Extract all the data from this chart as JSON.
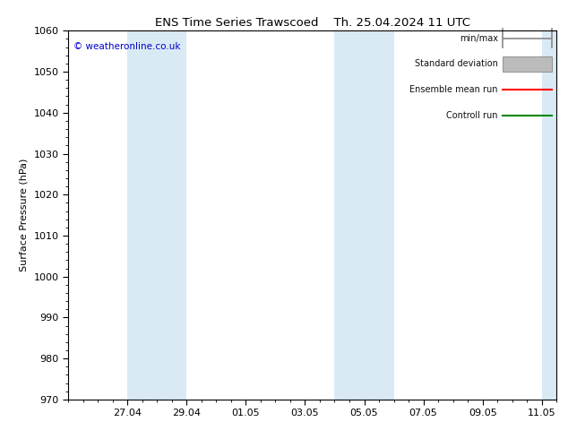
{
  "title_left": "ENS Time Series Trawscoed",
  "title_right": "Th. 25.04.2024 11 UTC",
  "ylabel": "Surface Pressure (hPa)",
  "ylim": [
    970,
    1060
  ],
  "yticks": [
    970,
    980,
    990,
    1000,
    1010,
    1020,
    1030,
    1040,
    1050,
    1060
  ],
  "xtick_labels": [
    "27.04",
    "29.04",
    "01.05",
    "03.05",
    "05.05",
    "07.05",
    "09.05",
    "11.05"
  ],
  "background_color": "#ffffff",
  "plot_bg_color": "#ffffff",
  "band_color": "#daeaf5",
  "copyright_text": "© weatheronline.co.uk",
  "copyright_color": "#0000cc",
  "title_fontsize": 9.5,
  "tick_fontsize": 8,
  "ylabel_fontsize": 8,
  "start_date": "2024-04-25",
  "band_dates": [
    [
      "2024-04-27",
      "2024-04-29"
    ],
    [
      "2024-05-04",
      "2024-05-06"
    ],
    [
      "2024-05-11",
      "2024-05-12"
    ]
  ],
  "xtick_dates": [
    "2024-04-27",
    "2024-04-29",
    "2024-05-01",
    "2024-05-03",
    "2024-05-05",
    "2024-05-07",
    "2024-05-09",
    "2024-05-11"
  ],
  "legend_labels": [
    "min/max",
    "Standard deviation",
    "Ensemble mean run",
    "Controll run"
  ],
  "legend_line_colors": [
    "#888888",
    "#bbbbbb",
    "#ff0000",
    "#008800"
  ],
  "legend_styles": [
    "minmax",
    "rect",
    "line",
    "line"
  ]
}
